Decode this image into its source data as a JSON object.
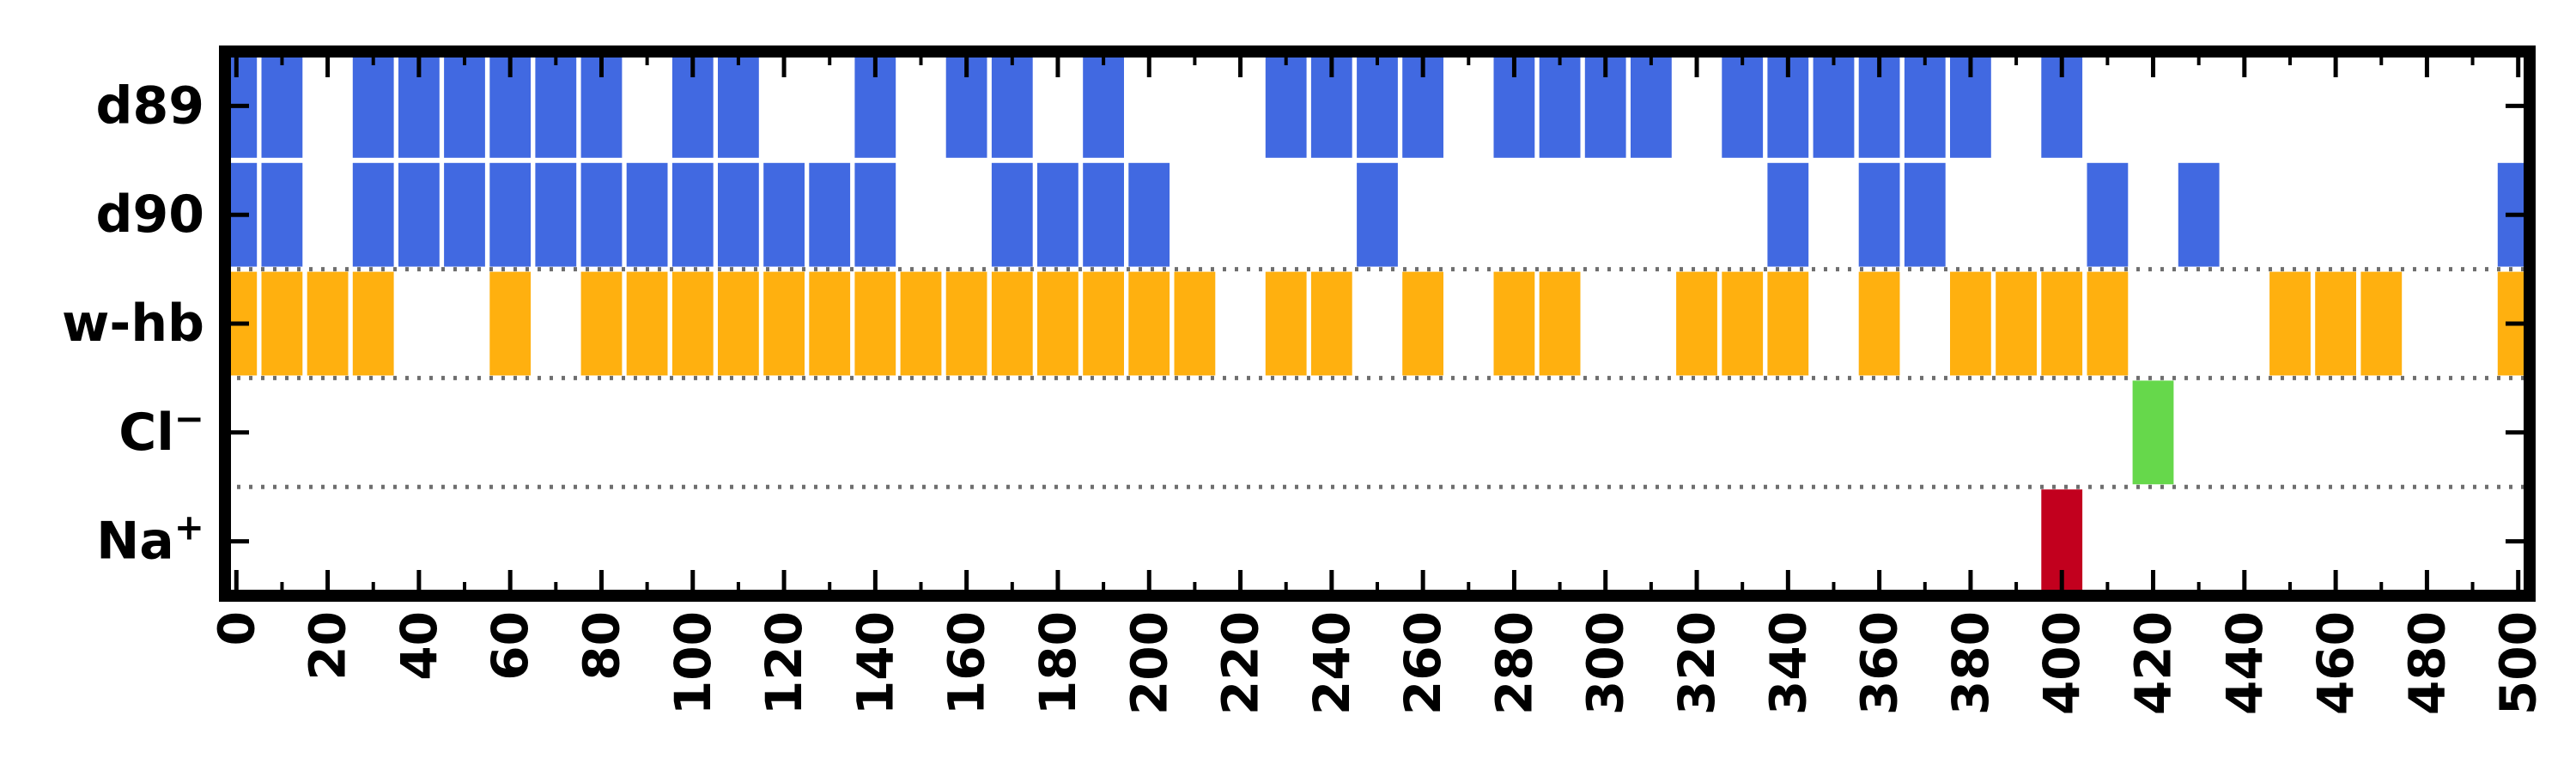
{
  "chart_data": {
    "type": "heatmap",
    "title": "",
    "xlabel": "",
    "ylabel": "",
    "xlim": [
      -2.5,
      502.5
    ],
    "x_ticks": [
      0,
      20,
      40,
      60,
      80,
      100,
      120,
      140,
      160,
      180,
      200,
      220,
      240,
      260,
      280,
      300,
      320,
      340,
      360,
      380,
      400,
      420,
      440,
      460,
      480,
      500
    ],
    "x_tick_labels": [
      "0",
      "20",
      "40",
      "60",
      "80",
      "100",
      "120",
      "140",
      "160",
      "180",
      "200",
      "220",
      "240",
      "260",
      "280",
      "300",
      "320",
      "340",
      "360",
      "380",
      "400",
      "420",
      "440",
      "460",
      "480",
      "500"
    ],
    "x_minor_ticks": [
      10,
      30,
      50,
      70,
      90,
      110,
      130,
      150,
      170,
      190,
      210,
      230,
      250,
      270,
      290,
      310,
      330,
      350,
      370,
      390,
      410,
      430,
      450,
      470,
      490
    ],
    "bin_width": 10,
    "row_separators": [
      2,
      3,
      4
    ],
    "grid": false,
    "rows": [
      {
        "label": "d89",
        "color": "#4169e1",
        "frames": [
          0,
          10,
          30,
          40,
          50,
          60,
          70,
          80,
          100,
          110,
          140,
          160,
          170,
          190,
          230,
          240,
          250,
          260,
          280,
          290,
          300,
          310,
          330,
          340,
          350,
          360,
          370,
          380,
          400
        ]
      },
      {
        "label": "d90",
        "color": "#4169e1",
        "frames": [
          0,
          10,
          30,
          40,
          50,
          60,
          70,
          80,
          90,
          100,
          110,
          120,
          130,
          140,
          170,
          180,
          190,
          200,
          250,
          340,
          360,
          370,
          410,
          430,
          500
        ]
      },
      {
        "label": "w-hb",
        "color": "#ffb00f",
        "frames": [
          0,
          10,
          20,
          30,
          60,
          80,
          90,
          100,
          110,
          120,
          130,
          140,
          150,
          160,
          170,
          180,
          190,
          200,
          210,
          230,
          240,
          260,
          280,
          290,
          320,
          330,
          340,
          360,
          380,
          390,
          400,
          410,
          450,
          460,
          470,
          500
        ]
      },
      {
        "label": "Cl",
        "label_sup": "−",
        "color": "#66d84b",
        "frames": [
          420
        ]
      },
      {
        "label": "Na",
        "label_sup": "+",
        "color": "#c2001e",
        "frames": [
          400
        ]
      }
    ]
  }
}
